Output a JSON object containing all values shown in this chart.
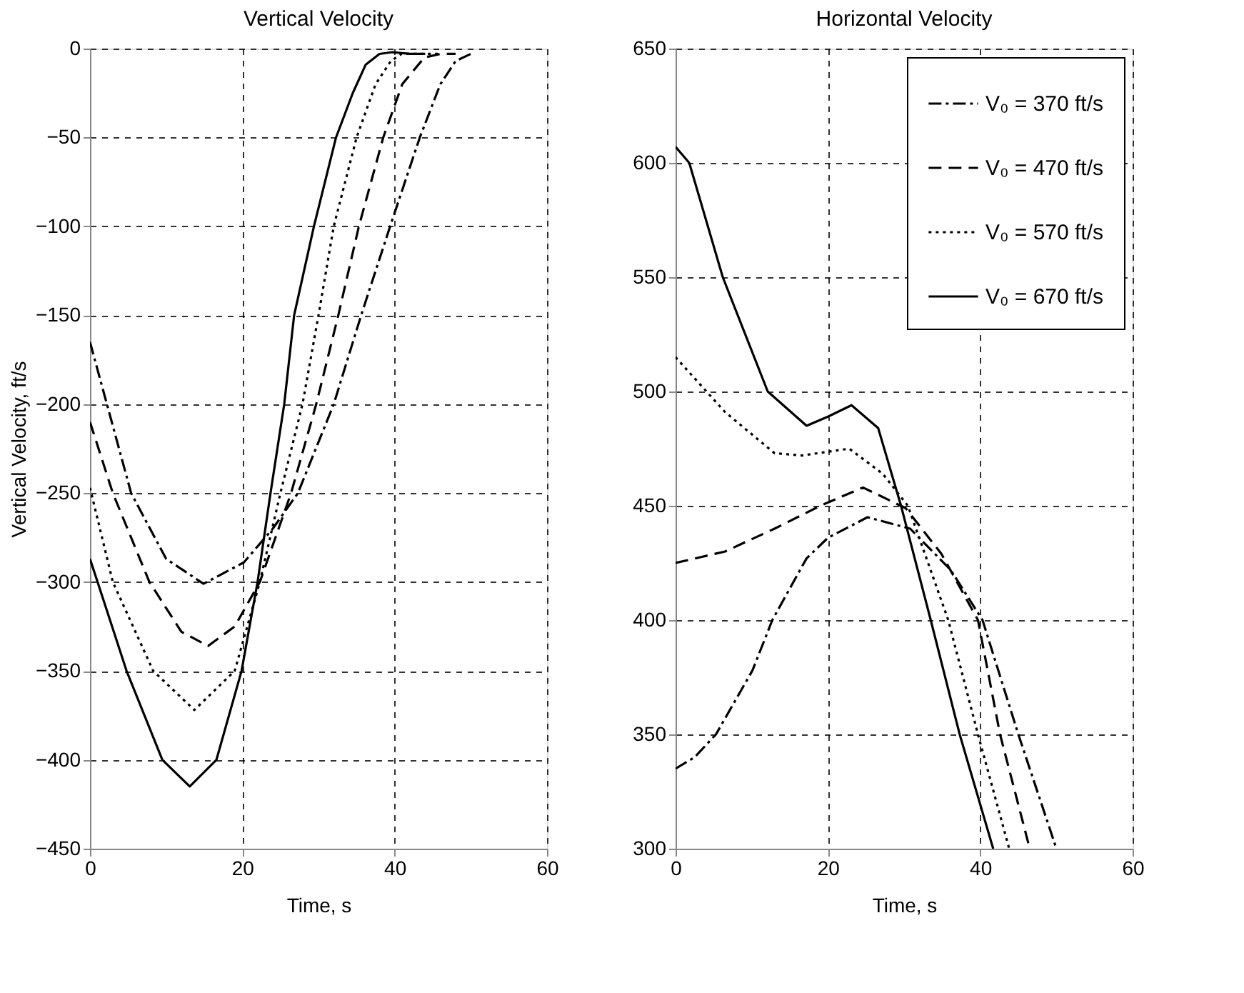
{
  "chart_data": [
    {
      "type": "line",
      "title": "Vertical Velocity",
      "xlabel": "Time, s",
      "ylabel": "Vertical Velocity, ft/s",
      "xlim": [
        0,
        60
      ],
      "xticks": [
        0,
        20,
        40,
        60
      ],
      "ylim": [
        -450,
        0
      ],
      "yticks": [
        -450,
        -400,
        -350,
        -300,
        -250,
        -200,
        -150,
        -100,
        -50,
        0
      ],
      "grid": true,
      "series": [
        {
          "color": "#000000",
          "line_style": "dashdot",
          "x": [
            0,
            5.4,
            10,
            14.9,
            20.2,
            24,
            27.3,
            32.0,
            35.6,
            39.4,
            43.3,
            46,
            48,
            50
          ],
          "values": [
            -165,
            -250,
            -287,
            -301,
            -289,
            -270,
            -250,
            -200,
            -150,
            -100,
            -50,
            -20,
            -7,
            -3
          ]
        },
        {
          "color": "#000000",
          "line_style": "dashed",
          "x": [
            0,
            3.0,
            7.8,
            12,
            15.5,
            19,
            22.3,
            26.4,
            29.7,
            32.6,
            35.3,
            38.5,
            41,
            43.9,
            46,
            48
          ],
          "values": [
            -210,
            -250,
            -300,
            -328,
            -336,
            -325,
            -300,
            -250,
            -200,
            -150,
            -100,
            -50,
            -20,
            -5,
            -3,
            -3
          ]
        },
        {
          "color": "#000000",
          "line_style": "dotted",
          "x": [
            0,
            3.0,
            8.3,
            13.7,
            19.0,
            22.3,
            25.0,
            27.9,
            30.0,
            32.0,
            35.0,
            37.5,
            39.5,
            40.9,
            43,
            46
          ],
          "values": [
            -247,
            -300,
            -350,
            -372,
            -350,
            -300,
            -250,
            -200,
            -150,
            -100,
            -50,
            -20,
            -7,
            -3,
            -3,
            -3
          ]
        },
        {
          "color": "#000000",
          "line_style": "solid",
          "x": [
            0,
            1.0,
            4.8,
            9.5,
            13.1,
            16.6,
            19.9,
            22.0,
            23.7,
            25.5,
            26.8,
            29.4,
            32.3,
            34.5,
            36.2,
            38,
            39.7,
            42,
            44
          ],
          "values": [
            -287,
            -300,
            -350,
            -400,
            -415,
            -400,
            -350,
            -300,
            -250,
            -200,
            -150,
            -100,
            -50,
            -25,
            -9,
            -3,
            -2,
            -3,
            -3
          ]
        }
      ]
    },
    {
      "type": "line",
      "title": "Horizontal Velocity",
      "xlabel": "Time, s",
      "xlim": [
        0,
        60
      ],
      "xticks": [
        0,
        20,
        40,
        60
      ],
      "ylim": [
        300,
        650
      ],
      "yticks": [
        300,
        350,
        400,
        450,
        500,
        550,
        600,
        650
      ],
      "grid": true,
      "legend": "top right",
      "series": [
        {
          "name": "V₀ = 370 ft/s",
          "color": "#000000",
          "line_style": "dashdot",
          "x": [
            0,
            2.5,
            5.3,
            10.1,
            12.7,
            17.2,
            20,
            25.2,
            30.8,
            36.1,
            40.3,
            45,
            50
          ],
          "values": [
            335,
            340,
            350,
            378,
            400,
            427,
            436,
            445,
            440,
            422,
            400,
            350,
            300
          ]
        },
        {
          "name": "V₀ = 470 ft/s",
          "color": "#000000",
          "line_style": "dashed",
          "x": [
            0,
            6.5,
            13.0,
            19.0,
            24.6,
            30.2,
            34.9,
            39.7,
            42.6,
            46.5
          ],
          "values": [
            425,
            430,
            440,
            450,
            458,
            449,
            429,
            400,
            350,
            300
          ]
        },
        {
          "name": "V₀ = 570 ft/s",
          "color": "#000000",
          "line_style": "dotted",
          "x": [
            0,
            6.5,
            13.0,
            16.6,
            22.8,
            27.2,
            30.5,
            35.8,
            39.7,
            43.8
          ],
          "values": [
            515,
            491,
            473,
            472,
            475,
            464,
            450,
            400,
            350,
            300
          ]
        },
        {
          "name": "V₀ = 670 ft/s",
          "color": "#000000",
          "line_style": "solid",
          "x": [
            0,
            1.8,
            6.2,
            12.1,
            17.2,
            20,
            23.1,
            26.6,
            29.6,
            33.5,
            37.3,
            41.7
          ],
          "values": [
            607,
            600,
            550,
            500,
            485,
            489,
            494,
            484,
            450,
            400,
            350,
            300
          ]
        }
      ]
    }
  ]
}
